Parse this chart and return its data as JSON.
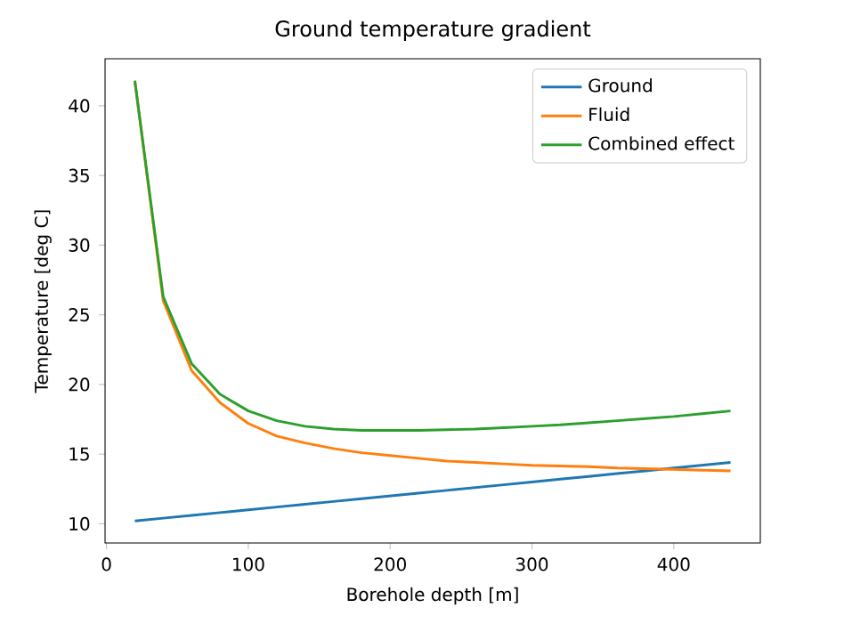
{
  "chart_data": {
    "type": "line",
    "title": "Ground temperature gradient",
    "xlabel": "Borehole depth [m]",
    "ylabel": "Temperature [deg C]",
    "x": [
      20,
      40,
      60,
      80,
      100,
      120,
      140,
      160,
      180,
      200,
      220,
      240,
      260,
      280,
      300,
      320,
      340,
      360,
      380,
      400,
      420,
      440
    ],
    "series": [
      {
        "name": "Ground",
        "color": "#1f77b4",
        "values": [
          10.2,
          10.4,
          10.6,
          10.8,
          11.0,
          11.2,
          11.4,
          11.6,
          11.8,
          12.0,
          12.2,
          12.4,
          12.6,
          12.8,
          13.0,
          13.2,
          13.4,
          13.6,
          13.8,
          14.0,
          14.2,
          14.4
        ]
      },
      {
        "name": "Fluid",
        "color": "#ff7f0e",
        "values": [
          41.8,
          26.0,
          21.0,
          18.7,
          17.2,
          16.3,
          15.8,
          15.4,
          15.1,
          14.9,
          14.7,
          14.5,
          14.4,
          14.3,
          14.2,
          14.15,
          14.1,
          14.0,
          13.95,
          13.9,
          13.85,
          13.8
        ]
      },
      {
        "name": "Combined effect",
        "color": "#2ca02c",
        "values": [
          41.8,
          26.3,
          21.5,
          19.3,
          18.1,
          17.4,
          17.0,
          16.8,
          16.7,
          16.7,
          16.7,
          16.75,
          16.8,
          16.9,
          17.0,
          17.1,
          17.25,
          17.4,
          17.55,
          17.7,
          17.9,
          18.1
        ]
      }
    ],
    "xlim": [
      -1,
      461
    ],
    "ylim": [
      8.62,
      43.38
    ],
    "xticks": [
      0,
      100,
      200,
      300,
      400
    ],
    "yticks": [
      10,
      15,
      20,
      25,
      30,
      35,
      40
    ],
    "legend": "top right",
    "grid": false,
    "marker": "none",
    "line_style": "solid"
  }
}
